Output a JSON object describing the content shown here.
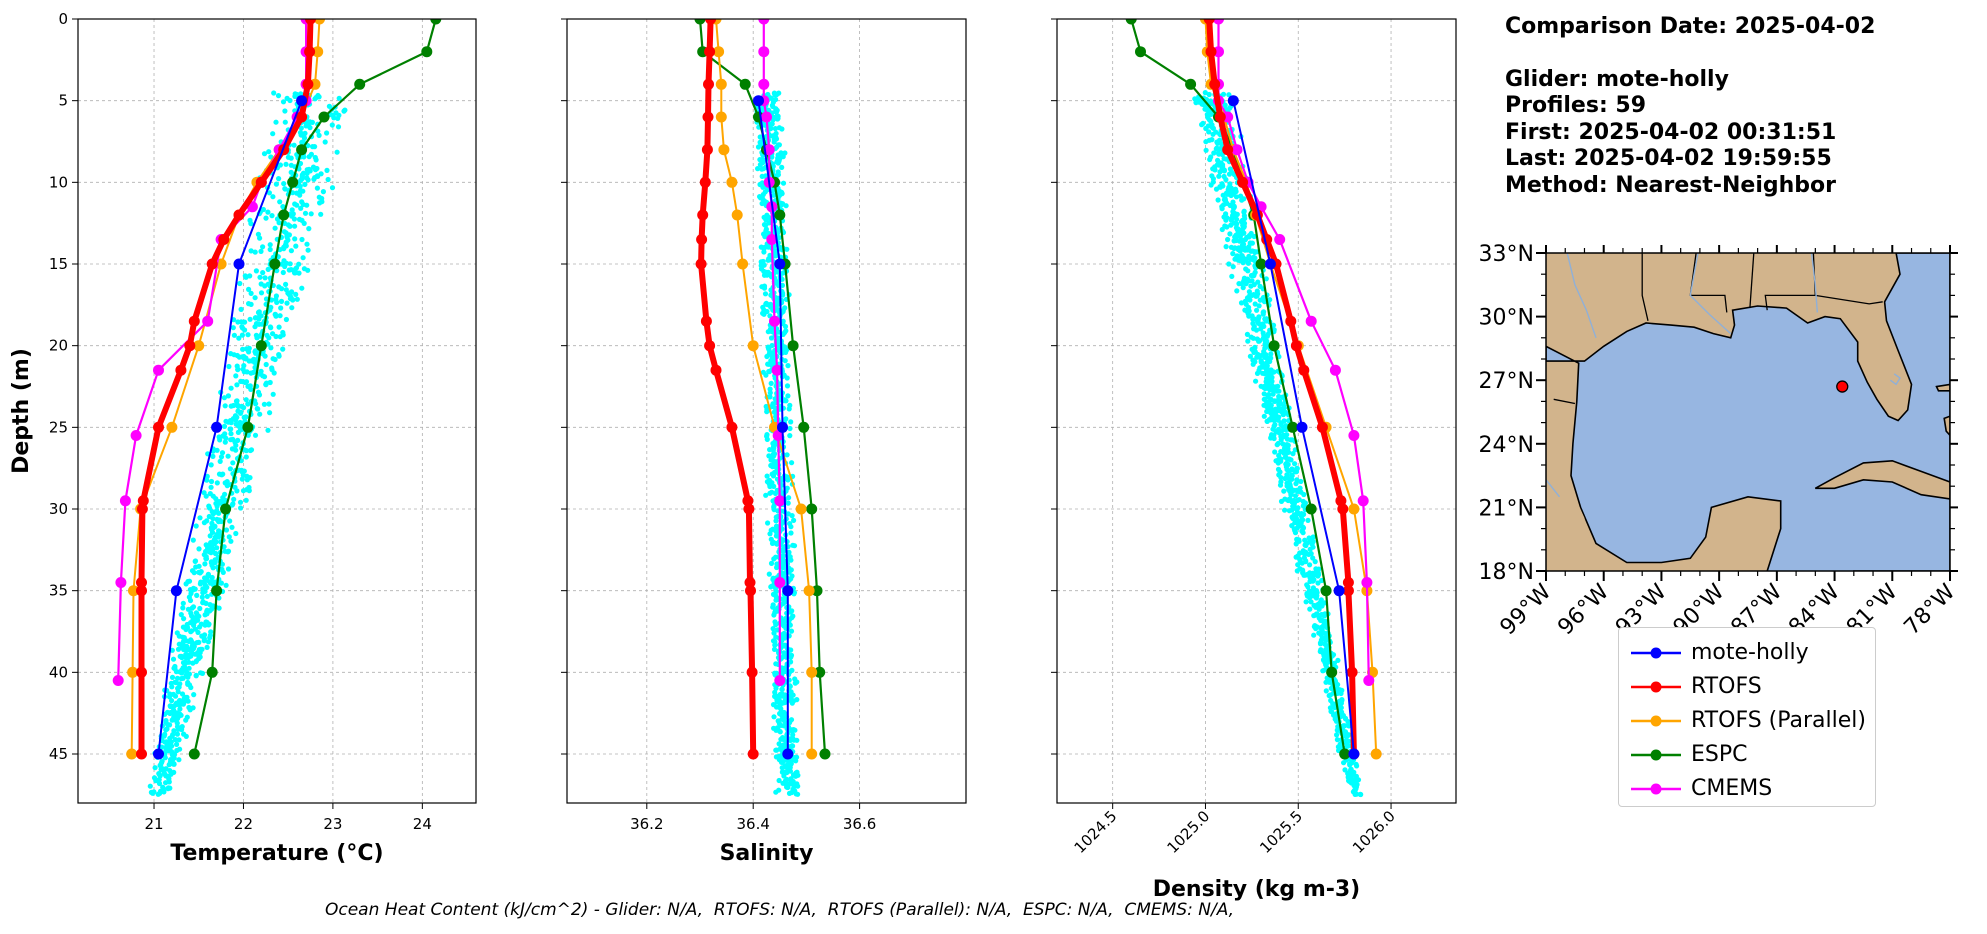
{
  "info": {
    "comparison_date": "Comparison Date: 2025-04-02",
    "glider": "Glider: mote-holly",
    "profiles": "Profiles: 59",
    "first": "First: 2025-04-02 00:31:51",
    "last": "Last: 2025-04-02 19:59:55",
    "method": "Method: Nearest-Neighbor"
  },
  "footer": "Ocean Heat Content (kJ/cm^2) - Glider: N/A,  RTOFS: N/A,  RTOFS (Parallel): N/A,  ESPC: N/A,  CMEMS: N/A,",
  "legend": [
    {
      "label": "mote-holly",
      "color": "#0000ff"
    },
    {
      "label": "RTOFS",
      "color": "#ff0000"
    },
    {
      "label": "RTOFS (Parallel)",
      "color": "#ffa500"
    },
    {
      "label": "ESPC",
      "color": "#008000"
    },
    {
      "label": "CMEMS",
      "color": "#ff00ff"
    }
  ],
  "colors": {
    "glider_points": "#00ffff",
    "grid": "#b0b0b0",
    "land": "#d2b48c",
    "ocean": "#97b6e1"
  },
  "map": {
    "lat_ticks": [
      "33°N",
      "30°N",
      "27°N",
      "24°N",
      "21°N",
      "18°N"
    ],
    "lon_ticks": [
      "99°W",
      "96°W",
      "93°W",
      "90°W",
      "87°W",
      "84°W",
      "81°W",
      "78°W"
    ],
    "extent": {
      "lon": [
        -99,
        -78
      ],
      "lat": [
        18,
        33
      ]
    },
    "glider_position": {
      "lon": -83.6,
      "lat": 26.7
    }
  },
  "chart_data": [
    {
      "type": "line",
      "title": "",
      "xlabel": "Temperature (°C)",
      "ylabel": "Depth (m)",
      "xlim": [
        20.15,
        24.6
      ],
      "ylim": [
        48,
        0
      ],
      "xticks": [
        "21",
        "22",
        "23",
        "24"
      ],
      "yticks": [
        "0",
        "5",
        "10",
        "15",
        "20",
        "25",
        "30",
        "35",
        "40",
        "45"
      ],
      "grid": true,
      "scatter_range": {
        "depth": [
          4.5,
          47.5
        ],
        "x_at_top": [
          22.3,
          23.3
        ],
        "x_at_bottom": [
          20.9,
          21.2
        ]
      },
      "series": [
        {
          "name": "mote-holly",
          "depth": [
            5,
            15,
            25,
            35,
            45
          ],
          "values": [
            22.65,
            21.95,
            21.7,
            21.25,
            21.05
          ]
        },
        {
          "name": "RTOFS",
          "depth": [
            0,
            2,
            4,
            6,
            8,
            10,
            12,
            13.5,
            15,
            18.5,
            20,
            21.5,
            25,
            29.5,
            30,
            34.5,
            35,
            40,
            45
          ],
          "values": [
            22.75,
            22.74,
            22.72,
            22.65,
            22.45,
            22.2,
            21.95,
            21.78,
            21.65,
            21.45,
            21.4,
            21.3,
            21.05,
            20.88,
            20.87,
            20.86,
            20.86,
            20.86,
            20.86
          ]
        },
        {
          "name": "RTOFS (Parallel)",
          "depth": [
            0,
            2,
            4,
            6,
            8,
            10,
            12,
            15,
            20,
            25,
            30,
            35,
            40,
            45
          ],
          "values": [
            22.85,
            22.83,
            22.8,
            22.65,
            22.4,
            22.15,
            21.95,
            21.75,
            21.5,
            21.2,
            20.85,
            20.77,
            20.76,
            20.75
          ]
        },
        {
          "name": "ESPC",
          "depth": [
            0,
            2,
            4,
            6,
            8,
            10,
            12,
            15,
            20,
            25,
            30,
            35,
            40,
            45
          ],
          "values": [
            24.15,
            24.05,
            23.3,
            22.9,
            22.65,
            22.55,
            22.45,
            22.35,
            22.2,
            22.05,
            21.8,
            21.7,
            21.65,
            21.45
          ]
        },
        {
          "name": "CMEMS",
          "depth": [
            0,
            2,
            4,
            5,
            6,
            8,
            10,
            11.5,
            13.5,
            18.5,
            21.5,
            25.5,
            29.5,
            34.5,
            40.5
          ],
          "values": [
            22.7,
            22.7,
            22.7,
            22.7,
            22.6,
            22.4,
            22.2,
            22.1,
            21.75,
            21.6,
            21.05,
            20.8,
            20.68,
            20.63,
            20.6
          ]
        }
      ]
    },
    {
      "type": "line",
      "title": "",
      "xlabel": "Salinity",
      "ylabel": "",
      "xlim": [
        36.05,
        36.8
      ],
      "ylim": [
        48,
        0
      ],
      "xticks": [
        "36.2",
        "36.4",
        "36.6"
      ],
      "yticks": [
        "0",
        "5",
        "10",
        "15",
        "20",
        "25",
        "30",
        "35",
        "40",
        "45"
      ],
      "grid": true,
      "scatter_range": {
        "depth": [
          4.5,
          47.5
        ],
        "x_at_top": [
          36.4,
          36.46
        ],
        "x_at_bottom": [
          36.44,
          36.49
        ]
      },
      "series": [
        {
          "name": "mote-holly",
          "depth": [
            5,
            15,
            25,
            35,
            45
          ],
          "values": [
            36.41,
            36.45,
            36.455,
            36.465,
            36.465
          ]
        },
        {
          "name": "RTOFS",
          "depth": [
            0,
            2,
            4,
            6,
            8,
            10,
            12,
            13.5,
            15,
            18.5,
            20,
            21.5,
            25,
            29.5,
            30,
            34.5,
            35,
            40,
            45
          ],
          "values": [
            36.32,
            36.318,
            36.316,
            36.315,
            36.314,
            36.31,
            36.305,
            36.303,
            36.302,
            36.312,
            36.318,
            36.33,
            36.36,
            36.39,
            36.392,
            36.394,
            36.395,
            36.398,
            36.4
          ]
        },
        {
          "name": "RTOFS (Parallel)",
          "depth": [
            0,
            2,
            4,
            6,
            8,
            10,
            12,
            15,
            20,
            25,
            30,
            35,
            40,
            45
          ],
          "values": [
            36.33,
            36.335,
            36.34,
            36.34,
            36.345,
            36.36,
            36.37,
            36.38,
            36.4,
            36.44,
            36.49,
            36.505,
            36.51,
            36.51
          ]
        },
        {
          "name": "ESPC",
          "depth": [
            0,
            2,
            4,
            6,
            8,
            10,
            12,
            15,
            20,
            25,
            30,
            35,
            40,
            45
          ],
          "values": [
            36.3,
            36.305,
            36.385,
            36.41,
            36.425,
            36.44,
            36.45,
            36.46,
            36.475,
            36.495,
            36.51,
            36.52,
            36.525,
            36.535
          ]
        },
        {
          "name": "CMEMS",
          "depth": [
            0,
            2,
            4,
            5,
            6,
            8,
            10,
            11.5,
            13.5,
            18.5,
            21.5,
            25.5,
            29.5,
            34.5,
            40.5
          ],
          "values": [
            36.42,
            36.42,
            36.42,
            36.42,
            36.425,
            36.43,
            36.43,
            36.435,
            36.435,
            36.44,
            36.445,
            36.447,
            36.45,
            36.45,
            36.45
          ]
        }
      ]
    },
    {
      "type": "line",
      "title": "",
      "xlabel": "Density (kg m-3)",
      "ylabel": "",
      "xlim": [
        1024.2,
        1026.35
      ],
      "ylim": [
        48,
        0
      ],
      "xticks": [
        "1024.5",
        "1025.0",
        "1025.5",
        "1026.0"
      ],
      "yticks": [
        "0",
        "5",
        "10",
        "15",
        "20",
        "25",
        "30",
        "35",
        "40",
        "45"
      ],
      "grid": true,
      "scatter_range": {
        "depth": [
          4.5,
          47.5
        ],
        "x_at_top": [
          1024.9,
          1025.15
        ],
        "x_at_bottom": [
          1025.77,
          1025.85
        ]
      },
      "series": [
        {
          "name": "mote-holly",
          "depth": [
            5,
            15,
            25,
            35,
            45
          ],
          "values": [
            1025.15,
            1025.35,
            1025.52,
            1025.72,
            1025.8
          ]
        },
        {
          "name": "RTOFS",
          "depth": [
            0,
            2,
            4,
            6,
            8,
            10,
            12,
            13.5,
            15,
            18.5,
            20,
            21.5,
            25,
            29.5,
            30,
            34.5,
            35,
            40,
            45
          ],
          "values": [
            1025.02,
            1025.03,
            1025.05,
            1025.08,
            1025.12,
            1025.2,
            1025.28,
            1025.33,
            1025.38,
            1025.46,
            1025.49,
            1025.53,
            1025.63,
            1025.73,
            1025.74,
            1025.77,
            1025.77,
            1025.79,
            1025.8
          ]
        },
        {
          "name": "RTOFS (Parallel)",
          "depth": [
            0,
            2,
            4,
            6,
            8,
            10,
            12,
            15,
            20,
            25,
            30,
            35,
            40,
            45
          ],
          "values": [
            1025.0,
            1025.01,
            1025.03,
            1025.1,
            1025.15,
            1025.22,
            1025.27,
            1025.35,
            1025.5,
            1025.65,
            1025.8,
            1025.87,
            1025.9,
            1025.92
          ]
        },
        {
          "name": "ESPC",
          "depth": [
            0,
            2,
            4,
            6,
            8,
            10,
            12,
            15,
            20,
            25,
            30,
            35,
            40,
            45
          ],
          "values": [
            1024.6,
            1024.65,
            1024.92,
            1025.07,
            1025.15,
            1025.2,
            1025.26,
            1025.3,
            1025.37,
            1025.47,
            1025.57,
            1025.65,
            1025.68,
            1025.75
          ]
        },
        {
          "name": "CMEMS",
          "depth": [
            0,
            2,
            4,
            5,
            6,
            8,
            10,
            11.5,
            13.5,
            18.5,
            21.5,
            25.5,
            29.5,
            34.5,
            40.5
          ],
          "values": [
            1025.07,
            1025.07,
            1025.07,
            1025.07,
            1025.12,
            1025.17,
            1025.23,
            1025.3,
            1025.4,
            1025.57,
            1025.7,
            1025.8,
            1025.85,
            1025.87,
            1025.88
          ]
        }
      ]
    }
  ]
}
